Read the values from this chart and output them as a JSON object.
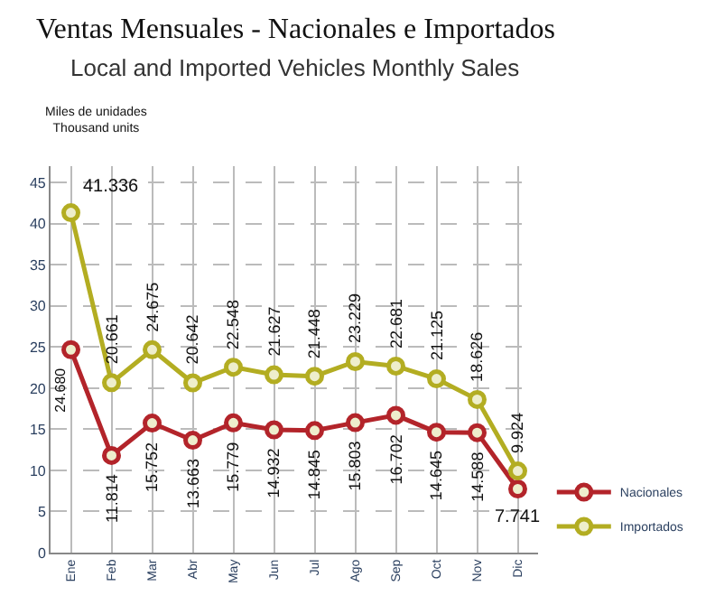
{
  "chart_data": {
    "type": "line",
    "title": "Ventas Mensuales - Nacionales e Importados",
    "subtitle": "Local and Imported Vehicles Monthly Sales",
    "ylabel": "Miles de unidades\nThousand units",
    "categories": [
      "Ene",
      "Feb",
      "Mar",
      "Abr",
      "May",
      "Jun",
      "Jul",
      "Ago",
      "Sep",
      "Oct",
      "Nov",
      "Dic"
    ],
    "series": [
      {
        "name": "Nacionales",
        "color": "#b3242a",
        "values": [
          24.68,
          11.814,
          15.752,
          13.663,
          15.779,
          14.932,
          14.845,
          15.803,
          16.702,
          14.645,
          14.588,
          7.741
        ],
        "value_labels": [
          "24.680",
          "11.814",
          "15.752",
          "13.663",
          "15.779",
          "14.932",
          "14.845",
          "15.803",
          "16.702",
          "14.645",
          "14.588",
          "7.741"
        ]
      },
      {
        "name": "Importados",
        "color": "#b3ad22",
        "values": [
          41.336,
          20.661,
          24.675,
          20.642,
          22.548,
          21.627,
          21.448,
          23.229,
          22.681,
          21.125,
          18.626,
          9.924
        ],
        "value_labels": [
          "41.336",
          "20.661",
          "24.675",
          "20.642",
          "22.548",
          "21.627",
          "21.448",
          "23.229",
          "22.681",
          "21.125",
          "18.626",
          "9.924"
        ]
      }
    ],
    "ylim": [
      0,
      47
    ],
    "yticks": [
      0,
      5,
      10,
      15,
      20,
      25,
      30,
      35,
      40,
      45
    ],
    "grid": true,
    "legend": "bottom right",
    "marker": "circle",
    "line_style": "solid"
  }
}
